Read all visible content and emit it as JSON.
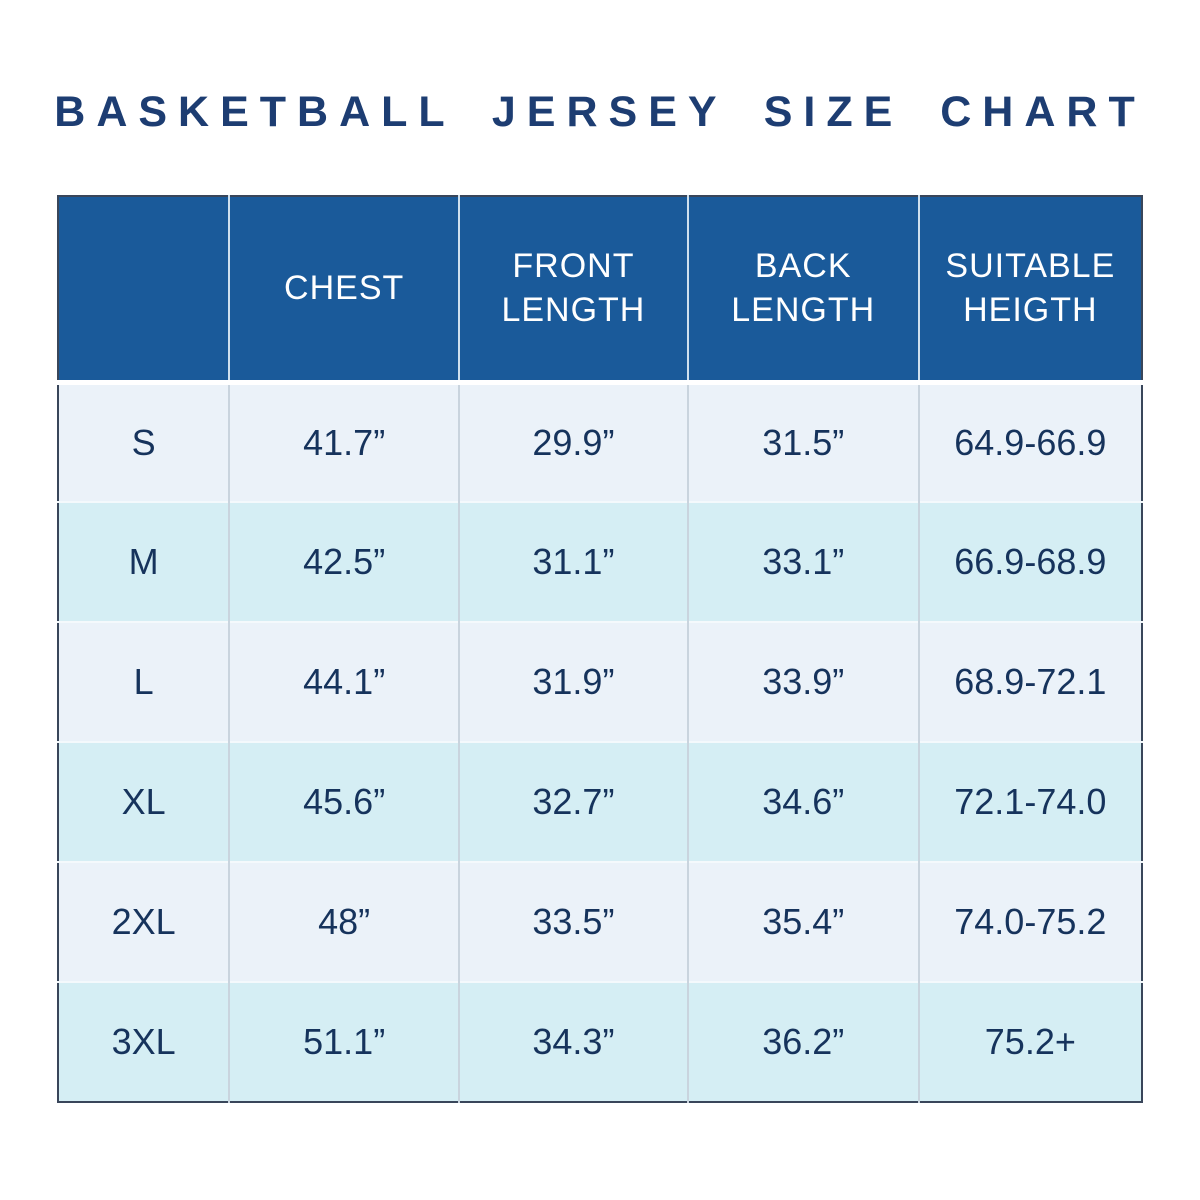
{
  "title": "BASKETBALL JERSEY SIZE CHART",
  "colors": {
    "title_text": "#1d3d72",
    "header_bg": "#1a5a9a",
    "header_text": "#ffffff",
    "row_light_bg": "#ebf2f9",
    "row_cyan_bg": "#d5eef4",
    "cell_text": "#16335c",
    "table_border": "#39465a"
  },
  "chart_data": {
    "type": "table",
    "title": "BASKETBALL JERSEY SIZE CHART",
    "columns": [
      "",
      "CHEST",
      "FRONT LENGTH",
      "BACK LENGTH",
      "SUITABLE HEIGTH"
    ],
    "rows": [
      [
        "S",
        "41.7”",
        "29.9”",
        "31.5”",
        "64.9-66.9"
      ],
      [
        "M",
        "42.5”",
        "31.1”",
        "33.1”",
        "66.9-68.9"
      ],
      [
        "L",
        "44.1”",
        "31.9”",
        "33.9”",
        "68.9-72.1"
      ],
      [
        "XL",
        "45.6”",
        "32.7”",
        "34.6”",
        "72.1-74.0"
      ],
      [
        "2XL",
        "48”",
        "33.5”",
        "35.4”",
        "74.0-75.2"
      ],
      [
        "3XL",
        "51.1”",
        "34.3”",
        "36.2”",
        "75.2+"
      ]
    ],
    "layout_hints": {
      "header_row": true,
      "alternating_row_tints": [
        "light",
        "cyan"
      ],
      "units": "inches",
      "note_typo_in_source": "HEIGTH spelled as in original image"
    }
  }
}
